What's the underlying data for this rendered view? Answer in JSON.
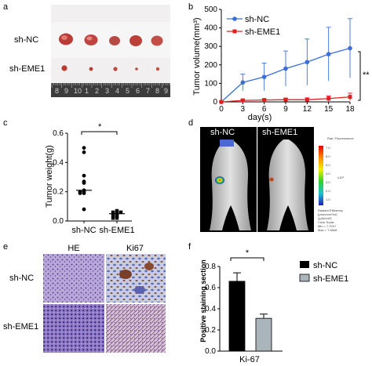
{
  "panels": {
    "a": {
      "letter": "a",
      "rows": [
        "sh-NC",
        "sh-EME1"
      ],
      "ruler_digits": [
        "8",
        "9",
        "10",
        "1",
        "2",
        "3",
        "4",
        "5",
        "6",
        "7",
        "8",
        "9"
      ]
    },
    "b": {
      "letter": "b",
      "significance": "**"
    },
    "c": {
      "letter": "c",
      "significance": "*"
    },
    "d": {
      "letter": "d",
      "labels": [
        "sh-NC",
        "sh-EME1"
      ],
      "colorbar_title": "Rad. Fluorescence",
      "colorbar_ticks": [
        "7.0",
        "6.0",
        "5.0",
        "4.0",
        "3.0",
        "2.0",
        "1.0"
      ],
      "colorbar_unit": "x10⁸",
      "colorbar_note_lines": [
        "Radiant Efficiency",
        "(p/sec/cm²/sr)",
        "/(µW/cm²)",
        "Color Scale",
        "Min = 7.37e7",
        "Max = 7.65e8"
      ]
    },
    "e": {
      "letter": "e",
      "columns": [
        "HE",
        "Ki67"
      ],
      "rows": [
        "sh-NC",
        "sh-EME1"
      ]
    },
    "f": {
      "letter": "f",
      "significance": "*"
    }
  },
  "chart_data": [
    {
      "panel": "b",
      "type": "line",
      "xlabel": "day(s)",
      "ylabel": "Tumor volume(mm³)",
      "x": [
        0,
        3,
        6,
        9,
        12,
        15,
        18
      ],
      "xlim": [
        0,
        18
      ],
      "ylim": [
        0,
        500
      ],
      "yticks": [
        0,
        100,
        200,
        300,
        400,
        500
      ],
      "legend_position": "top-left",
      "series": [
        {
          "name": "sh-NC",
          "color": "#3a6fd8",
          "marker": "circle",
          "values": [
            0,
            105,
            135,
            180,
            215,
            258,
            290
          ],
          "errors": [
            0,
            45,
            75,
            95,
            125,
            145,
            160
          ]
        },
        {
          "name": "sh-EME1",
          "color": "#e02020",
          "marker": "square",
          "values": [
            0,
            8,
            10,
            12,
            12,
            18,
            27
          ],
          "errors": [
            0,
            5,
            5,
            8,
            10,
            14,
            20
          ]
        }
      ]
    },
    {
      "panel": "c",
      "type": "scatter",
      "ylabel": "Tumor weight(g)",
      "categories": [
        "sh-NC",
        "sh-EME1"
      ],
      "ylim": [
        0,
        0.6
      ],
      "yticks": [
        0.0,
        0.2,
        0.4,
        0.6
      ],
      "series": [
        {
          "name": "sh-NC",
          "values": [
            0.5,
            0.47,
            0.31,
            0.27,
            0.26,
            0.21,
            0.2,
            0.2,
            0.19,
            0.19,
            0.08
          ],
          "median": 0.21
        },
        {
          "name": "sh-EME1",
          "values": [
            0.07,
            0.06,
            0.06,
            0.06,
            0.05,
            0.04,
            0.04,
            0.03,
            0.02,
            0.02
          ],
          "median": 0.05
        }
      ]
    },
    {
      "panel": "f",
      "type": "bar",
      "ylabel": "Positive staining section",
      "xlabel": "Ki-67",
      "ylim": [
        0,
        0.8
      ],
      "yticks": [
        0.0,
        0.2,
        0.4,
        0.6,
        0.8
      ],
      "legend_position": "right",
      "series": [
        {
          "name": "sh-NC",
          "color": "#000000",
          "values": [
            0.66
          ],
          "errors": [
            0.08
          ]
        },
        {
          "name": "sh-EME1",
          "color": "#a9b4bb",
          "values": [
            0.31
          ],
          "errors": [
            0.04
          ]
        }
      ]
    }
  ]
}
